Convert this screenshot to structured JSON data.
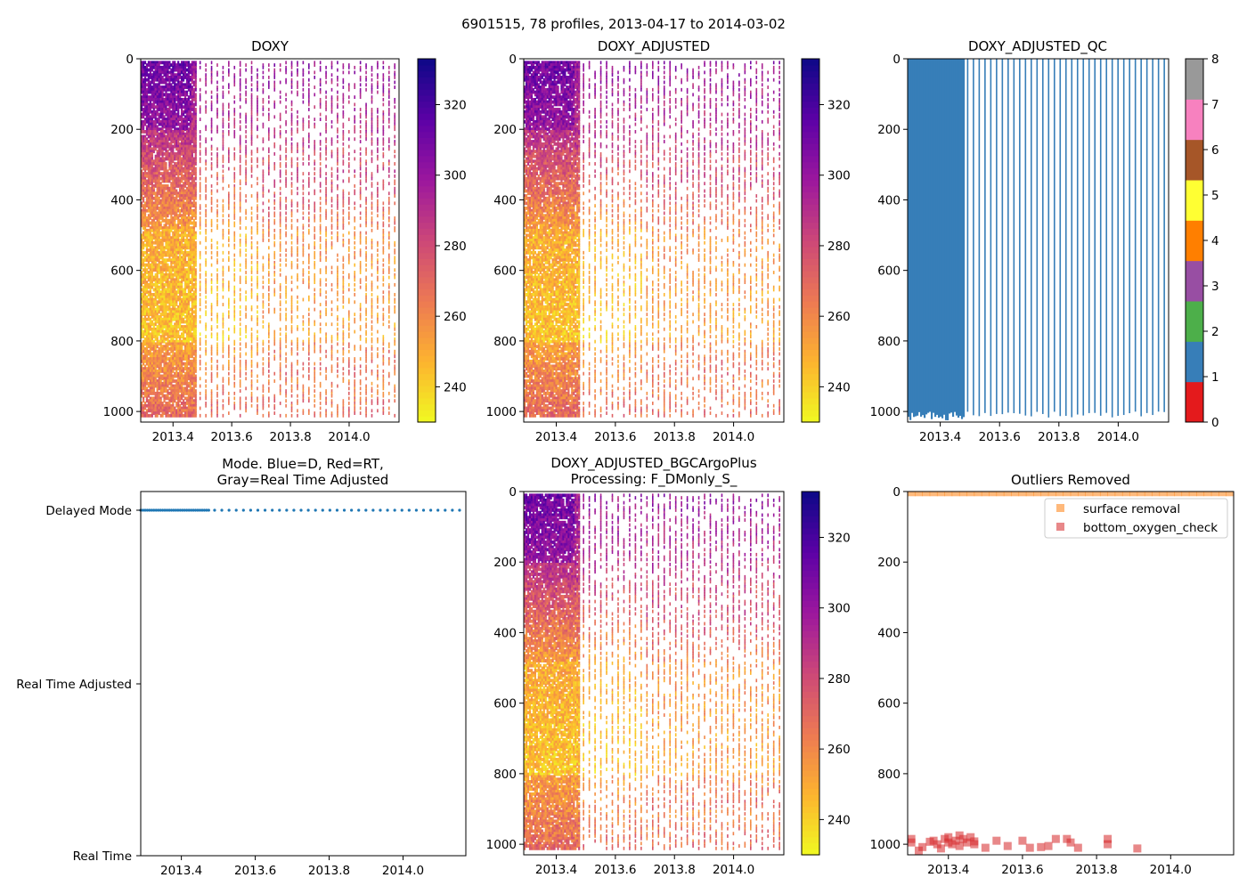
{
  "figure_title": "6901515, 78 profiles, 2013-04-17 to 2014-03-02",
  "colors": {
    "qc": [
      "#e41a1c",
      "#377eb8",
      "#4daf4a",
      "#984ea3",
      "#ff7f00",
      "#ffff33",
      "#a65628",
      "#f781bf",
      "#999999"
    ],
    "plasma": [
      "#f0f921",
      "#fdb42f",
      "#ed7953",
      "#cc4778",
      "#9c179e",
      "#5c01a6",
      "#0d0887"
    ],
    "series_blue": "#1f77b4",
    "surface_removal": "#ff7f0e",
    "bottom_oxygen_check": "#d62728"
  },
  "chart_data": [
    {
      "id": "doxy",
      "type": "heatmap",
      "title": "DOXY",
      "xlim": [
        2013.29,
        2014.17
      ],
      "ylim": [
        1030,
        0
      ],
      "xticks": [
        "2013.4",
        "2013.6",
        "2013.8",
        "2014.0"
      ],
      "yticks": [
        "0",
        "200",
        "400",
        "600",
        "800",
        "1000"
      ],
      "colorbar": {
        "range": [
          230,
          333
        ],
        "ticks": [
          "240",
          "260",
          "280",
          "300",
          "320"
        ],
        "cmap": "plasma"
      }
    },
    {
      "id": "doxy_adjusted",
      "type": "heatmap",
      "title": "DOXY_ADJUSTED",
      "xlim": [
        2013.29,
        2014.17
      ],
      "ylim": [
        1030,
        0
      ],
      "xticks": [
        "2013.4",
        "2013.6",
        "2013.8",
        "2014.0"
      ],
      "yticks": [
        "0",
        "200",
        "400",
        "600",
        "800",
        "1000"
      ],
      "colorbar": {
        "range": [
          230,
          333
        ],
        "ticks": [
          "240",
          "260",
          "280",
          "300",
          "320"
        ],
        "cmap": "plasma"
      }
    },
    {
      "id": "doxy_adjusted_qc",
      "type": "heatmap",
      "title": "DOXY_ADJUSTED_QC",
      "xlim": [
        2013.29,
        2014.17
      ],
      "ylim": [
        1030,
        0
      ],
      "xticks": [
        "2013.4",
        "2013.6",
        "2013.8",
        "2014.0"
      ],
      "yticks": [
        "0",
        "200",
        "400",
        "600",
        "800",
        "1000"
      ],
      "colorbar": {
        "range": [
          0,
          8
        ],
        "ticks": [
          "0",
          "1",
          "2",
          "3",
          "4",
          "5",
          "6",
          "7",
          "8"
        ],
        "cmap": "qc"
      },
      "values_note": "all plotted samples have QC flag 1"
    },
    {
      "id": "mode",
      "type": "scatter",
      "title_line1": "Mode. Blue=D, Red=RT,",
      "title_line2": "Gray=Real Time Adjusted",
      "xlim": [
        2013.29,
        2014.17
      ],
      "xticks": [
        "2013.4",
        "2013.6",
        "2013.8",
        "2014.0"
      ],
      "categories": [
        "Delayed Mode",
        "Real Time Adjusted",
        "Real Time"
      ],
      "points_in_category": "Delayed Mode",
      "profiles": 78
    },
    {
      "id": "doxy_bgc",
      "type": "heatmap",
      "title_line1": "DOXY_ADJUSTED_BGCArgoPlus",
      "title_line2": "Processing: F_DMonly_S_",
      "xlim": [
        2013.29,
        2014.17
      ],
      "ylim": [
        1030,
        0
      ],
      "xticks": [
        "2013.4",
        "2013.6",
        "2013.8",
        "2014.0"
      ],
      "yticks": [
        "0",
        "200",
        "400",
        "600",
        "800",
        "1000"
      ],
      "colorbar": {
        "range": [
          230,
          333
        ],
        "ticks": [
          "240",
          "260",
          "280",
          "300",
          "320"
        ],
        "cmap": "plasma"
      }
    },
    {
      "id": "outliers",
      "type": "scatter",
      "title": "Outliers Removed",
      "xlim": [
        2013.29,
        2014.17
      ],
      "ylim": [
        1030,
        0
      ],
      "xticks": [
        "2013.4",
        "2013.6",
        "2013.8",
        "2014.0"
      ],
      "yticks": [
        "0",
        "200",
        "400",
        "600",
        "800",
        "1000"
      ],
      "legend": [
        "surface removal",
        "bottom_oxygen_check"
      ],
      "legend_loc": "upper right",
      "series": [
        {
          "name": "surface removal",
          "points": [
            [
              2013.3,
              2
            ],
            [
              2013.32,
              2
            ],
            [
              2013.34,
              2
            ],
            [
              2013.36,
              2
            ],
            [
              2013.38,
              2
            ],
            [
              2013.4,
              2
            ],
            [
              2013.42,
              2
            ],
            [
              2013.44,
              2
            ],
            [
              2013.46,
              2
            ],
            [
              2013.48,
              2
            ],
            [
              2013.5,
              2
            ],
            [
              2013.52,
              2
            ],
            [
              2013.54,
              2
            ],
            [
              2013.56,
              2
            ],
            [
              2013.58,
              2
            ],
            [
              2013.6,
              2
            ],
            [
              2013.62,
              2
            ],
            [
              2013.64,
              2
            ],
            [
              2013.66,
              2
            ],
            [
              2013.68,
              2
            ],
            [
              2013.7,
              2
            ],
            [
              2013.72,
              2
            ],
            [
              2013.74,
              2
            ],
            [
              2013.76,
              2
            ],
            [
              2013.78,
              2
            ],
            [
              2013.8,
              2
            ],
            [
              2013.82,
              2
            ],
            [
              2013.84,
              2
            ],
            [
              2013.86,
              2
            ],
            [
              2013.88,
              2
            ],
            [
              2013.9,
              2
            ],
            [
              2013.92,
              2
            ],
            [
              2013.94,
              2
            ],
            [
              2013.96,
              2
            ],
            [
              2013.98,
              2
            ],
            [
              2014.0,
              2
            ],
            [
              2014.02,
              2
            ],
            [
              2014.04,
              2
            ],
            [
              2014.06,
              2
            ],
            [
              2014.08,
              2
            ],
            [
              2014.1,
              2
            ],
            [
              2014.12,
              2
            ],
            [
              2014.14,
              2
            ],
            [
              2014.16,
              2
            ]
          ]
        },
        {
          "name": "bottom_oxygen_check",
          "points": [
            [
              2013.3,
              985
            ],
            [
              2013.3,
              995
            ],
            [
              2013.32,
              1018
            ],
            [
              2013.33,
              1008
            ],
            [
              2013.35,
              993
            ],
            [
              2013.36,
              990
            ],
            [
              2013.37,
              1000
            ],
            [
              2013.38,
              1012
            ],
            [
              2013.39,
              985
            ],
            [
              2013.4,
              995
            ],
            [
              2013.4,
              980
            ],
            [
              2013.41,
              1000
            ],
            [
              2013.42,
              990
            ],
            [
              2013.43,
              975
            ],
            [
              2013.43,
              1005
            ],
            [
              2013.44,
              985
            ],
            [
              2013.45,
              995
            ],
            [
              2013.46,
              980
            ],
            [
              2013.47,
              992
            ],
            [
              2013.47,
              1000
            ],
            [
              2013.5,
              1010
            ],
            [
              2013.53,
              990
            ],
            [
              2013.56,
              1005
            ],
            [
              2013.6,
              990
            ],
            [
              2013.62,
              1010
            ],
            [
              2013.65,
              1008
            ],
            [
              2013.67,
              1005
            ],
            [
              2013.69,
              985
            ],
            [
              2013.72,
              985
            ],
            [
              2013.73,
              995
            ],
            [
              2013.75,
              1010
            ],
            [
              2013.83,
              985
            ],
            [
              2013.83,
              1000
            ],
            [
              2013.91,
              1012
            ]
          ]
        }
      ]
    }
  ]
}
